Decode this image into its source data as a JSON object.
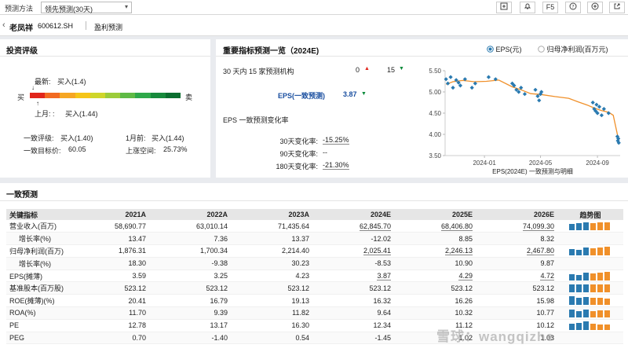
{
  "toolbar": {
    "method_label": "预测方法",
    "method_value": "领先预测(30天)",
    "f5_label": "F5"
  },
  "header": {
    "stock_name": "老凤祥",
    "stock_code": "600612.SH",
    "tab": "盈利预测"
  },
  "rating": {
    "title": "投资评级",
    "latest_label": "最新:",
    "latest_value": "买入(1.4)",
    "last_month_label": "上月: :",
    "last_month_value": "买入(1.44)",
    "buy_label": "买",
    "sell_label": "卖",
    "latest_pos": 0.1,
    "last_month_pos": 0.11,
    "bar_colors": [
      "#e1251b",
      "#f26a21",
      "#f6a623",
      "#f5c518",
      "#cfd62a",
      "#9ccc3a",
      "#5fba45",
      "#2ea84a",
      "#178a3c",
      "#0b6e30"
    ],
    "consensus_label": "一致评级:",
    "consensus_value": "买入(1.40)",
    "month_ago_label": "1月前:",
    "month_ago_value": "买入(1.44)",
    "target_label": "一致目标价:",
    "target_value": "60.05",
    "upside_label": "上涨空间:",
    "upside_value": "25.73%"
  },
  "forecast": {
    "title": "重要指标预测一览（2024E)",
    "radio_eps": "EPS(元)",
    "radio_profit": "归母净利润(百万元)",
    "institutions": "30 天内 15 家预测机构",
    "up_count": "0",
    "down_count": "15",
    "eps_label": "EPS(一致预测)",
    "eps_value": "3.87",
    "change_title": "EPS 一致预测变化率",
    "changes": [
      {
        "label": "30天变化率:",
        "value": "-15.25%"
      },
      {
        "label": "90天变化率:",
        "value": "--"
      },
      {
        "label": "180天变化率:",
        "value": "-21.30%"
      }
    ]
  },
  "chart_data": {
    "type": "scatter",
    "title": "",
    "xlabel": "EPS(2024E) 一致预测与明细",
    "ylabel": "",
    "ylim": [
      3.5,
      5.5
    ],
    "yticks": [
      "5.50",
      "5.00",
      "4.50",
      "4.00",
      "3.50"
    ],
    "xticks": [
      "2024-01",
      "2024-05",
      "2024-09"
    ],
    "xrange": [
      "2023-10-08",
      "2024-10-20"
    ],
    "line_color": "#f0902a",
    "point_color": "#2a7ab0",
    "consensus_line": {
      "x": [
        "2023-10-10",
        "2023-10-25",
        "2023-11-15",
        "2023-12-10",
        "2024-01-05",
        "2024-02-01",
        "2024-03-01",
        "2024-03-20",
        "2024-04-10",
        "2024-05-01",
        "2024-06-01",
        "2024-07-01",
        "2024-07-20",
        "2024-08-10",
        "2024-08-25",
        "2024-09-10",
        "2024-09-25",
        "2024-10-05",
        "2024-10-12",
        "2024-10-17"
      ],
      "y": [
        5.18,
        5.24,
        5.27,
        5.24,
        5.25,
        5.28,
        5.12,
        5.05,
        4.96,
        4.94,
        4.89,
        4.85,
        4.77,
        4.69,
        4.62,
        4.56,
        4.52,
        4.45,
        4.1,
        3.85
      ]
    },
    "points": {
      "x": [
        "2023-10-10",
        "2023-10-14",
        "2023-10-20",
        "2023-10-25",
        "2023-11-01",
        "2023-11-06",
        "2023-11-10",
        "2023-11-20",
        "2023-12-05",
        "2023-12-12",
        "2024-01-10",
        "2024-01-25",
        "2024-03-01",
        "2024-03-05",
        "2024-03-10",
        "2024-03-15",
        "2024-03-20",
        "2024-03-28",
        "2024-04-20",
        "2024-04-25",
        "2024-04-28",
        "2024-05-01",
        "2024-05-03",
        "2024-08-22",
        "2024-08-25",
        "2024-08-28",
        "2024-08-30",
        "2024-09-01",
        "2024-09-05",
        "2024-09-10",
        "2024-09-15",
        "2024-09-25",
        "2024-10-14",
        "2024-10-15",
        "2024-10-16",
        "2024-10-17"
      ],
      "y": [
        5.3,
        5.2,
        5.35,
        5.1,
        5.28,
        5.22,
        5.15,
        5.3,
        5.1,
        5.2,
        5.35,
        5.3,
        5.2,
        5.15,
        5.05,
        5.0,
        5.1,
        4.95,
        5.05,
        4.9,
        4.8,
        4.95,
        5.0,
        4.75,
        4.6,
        4.55,
        4.7,
        4.5,
        4.65,
        4.45,
        4.6,
        4.5,
        3.95,
        3.85,
        3.9,
        3.8
      ]
    }
  },
  "consensus": {
    "title": "一致预测",
    "headers": [
      "关键指标",
      "2021A",
      "2022A",
      "2023A",
      "2024E",
      "2025E",
      "2026E",
      "趋势图"
    ],
    "rows": [
      {
        "label": "营业收入(百万)",
        "indent": false,
        "values": [
          "58,690.77",
          "63,010.14",
          "71,435.64",
          "62,845.70",
          "68,406.80",
          "74,099.30"
        ],
        "trend": [
          0.68,
          0.73,
          0.83,
          0.73,
          0.8,
          0.86
        ]
      },
      {
        "label": "增长率(%)",
        "indent": true,
        "values": [
          "13.47",
          "7.36",
          "13.37",
          "-12.02",
          "8.85",
          "8.32"
        ],
        "trend": null
      },
      {
        "label": "归母净利润(百万)",
        "indent": false,
        "values": [
          "1,876.31",
          "1,700.34",
          "2,214.40",
          "2,025.41",
          "2,246.13",
          "2,467.80"
        ],
        "trend": [
          0.68,
          0.62,
          0.8,
          0.74,
          0.82,
          0.9
        ]
      },
      {
        "label": "增长率(%)",
        "indent": true,
        "values": [
          "18.30",
          "-9.38",
          "30.23",
          "-8.53",
          "10.90",
          "9.87"
        ],
        "trend": null
      },
      {
        "label": "EPS(摊薄)",
        "indent": false,
        "values": [
          "3.59",
          "3.25",
          "4.23",
          "3.87",
          "4.29",
          "4.72"
        ],
        "trend": [
          0.68,
          0.62,
          0.8,
          0.74,
          0.82,
          0.9
        ]
      },
      {
        "label": "基准股本(百万股)",
        "indent": false,
        "values": [
          "523.12",
          "523.12",
          "523.12",
          "523.12",
          "523.12",
          "523.12"
        ],
        "trend": [
          0.8,
          0.8,
          0.8,
          0.8,
          0.8,
          0.8
        ]
      },
      {
        "label": "ROE(摊薄)(%)",
        "indent": false,
        "values": [
          "20.41",
          "16.79",
          "19.13",
          "16.32",
          "16.26",
          "15.98"
        ],
        "trend": [
          0.9,
          0.74,
          0.84,
          0.72,
          0.72,
          0.7
        ]
      },
      {
        "label": "ROA(%)",
        "indent": false,
        "values": [
          "11.70",
          "9.39",
          "11.82",
          "9.64",
          "10.32",
          "10.77"
        ],
        "trend": [
          0.84,
          0.67,
          0.85,
          0.69,
          0.74,
          0.77
        ]
      },
      {
        "label": "PE",
        "indent": false,
        "values": [
          "12.78",
          "13.17",
          "16.30",
          "12.34",
          "11.12",
          "10.12"
        ],
        "trend": [
          0.7,
          0.72,
          0.9,
          0.68,
          0.62,
          0.56
        ]
      },
      {
        "label": "PEG",
        "indent": false,
        "values": [
          "0.70",
          "-1.40",
          "0.54",
          "-1.45",
          "1.02",
          "1.03"
        ],
        "trend": null
      }
    ],
    "trend_colors": [
      "#2a7ab0",
      "#2a7ab0",
      "#2a7ab0",
      "#f0902a",
      "#f0902a",
      "#f0902a"
    ]
  },
  "watermark": "雪球：wangqizhe"
}
